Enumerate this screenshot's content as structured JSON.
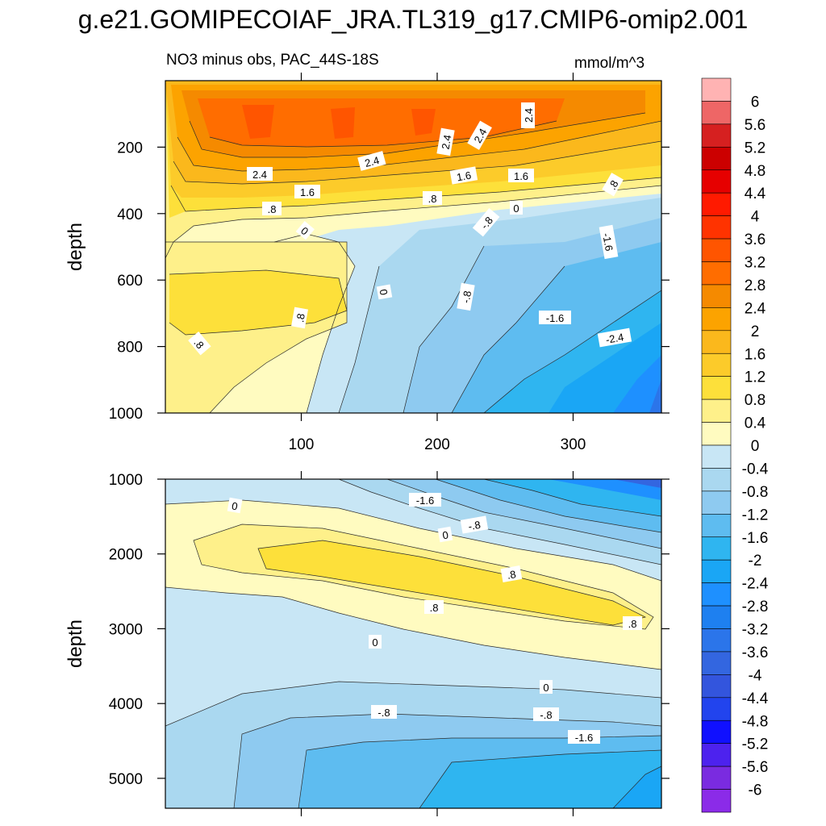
{
  "title": "g.e21.GOMIPECOIAF_JRA.TL319_g17.CMIP6-omip2.001",
  "chart_data": {
    "type": "heatmap",
    "subtitle": "NO3 minus obs, PAC_44S-18S",
    "units": "mmol/m^3",
    "panels": [
      {
        "ylabel": "depth",
        "ylim": [
          0,
          1000
        ],
        "yreversed": true,
        "yticks": [
          "200",
          "400",
          "600",
          "800",
          "1000"
        ],
        "xlim": [
          0,
          365
        ],
        "xticks": [
          "100",
          "200",
          "300"
        ],
        "contour_labels": [
          "2.4",
          "2.4",
          "2.4",
          "2.4",
          "2.4",
          "1.6",
          "1.6",
          "1.6",
          ".8",
          ".8",
          ".8",
          "0",
          "0",
          "0",
          "-.8",
          "-.8",
          "-1.6",
          "-1.6",
          "-2.4",
          ".8",
          ".8"
        ]
      },
      {
        "ylabel": "depth",
        "ylim": [
          1000,
          5400
        ],
        "yreversed": true,
        "yticks": [
          "1000",
          "2000",
          "3000",
          "4000",
          "5000"
        ],
        "xlim": [
          0,
          365
        ],
        "contour_labels": [
          "0",
          "-1.6",
          "-.8",
          "0",
          ".8",
          ".8",
          ".8",
          "0",
          "0",
          "-.8",
          "-.8",
          "-1.6"
        ]
      }
    ],
    "colorbar": {
      "labels": [
        "6",
        "5.6",
        "5.2",
        "4.8",
        "4.4",
        "4",
        "3.6",
        "3.2",
        "2.8",
        "2.4",
        "2",
        "1.6",
        "1.2",
        "0.8",
        "0.4",
        "0",
        "-0.4",
        "-0.8",
        "-1.2",
        "-1.6",
        "-2",
        "-2.4",
        "-2.8",
        "-3.2",
        "-3.6",
        "-4",
        "-4.4",
        "-4.8",
        "-5.2",
        "-5.6",
        "-6"
      ],
      "colors": [
        "#ffb3b3",
        "#ee6666",
        "#d62020",
        "#cc0000",
        "#e60000",
        "#ff1a00",
        "#ff3300",
        "#ff5500",
        "#ff6d00",
        "#f58a00",
        "#fca300",
        "#fbb81c",
        "#fccb2a",
        "#fde03a",
        "#fef08a",
        "#fffbc0",
        "#c8e6f5",
        "#aad8f0",
        "#8ecaf0",
        "#5ebcf0",
        "#2fb5f0",
        "#1aa6f5",
        "#1e90ff",
        "#1e80f0",
        "#2b75ea",
        "#3366e0",
        "#3355dd",
        "#2244ee",
        "#1010ff",
        "#4d22ee",
        "#7a2be0",
        "#8b2be8"
      ]
    }
  }
}
